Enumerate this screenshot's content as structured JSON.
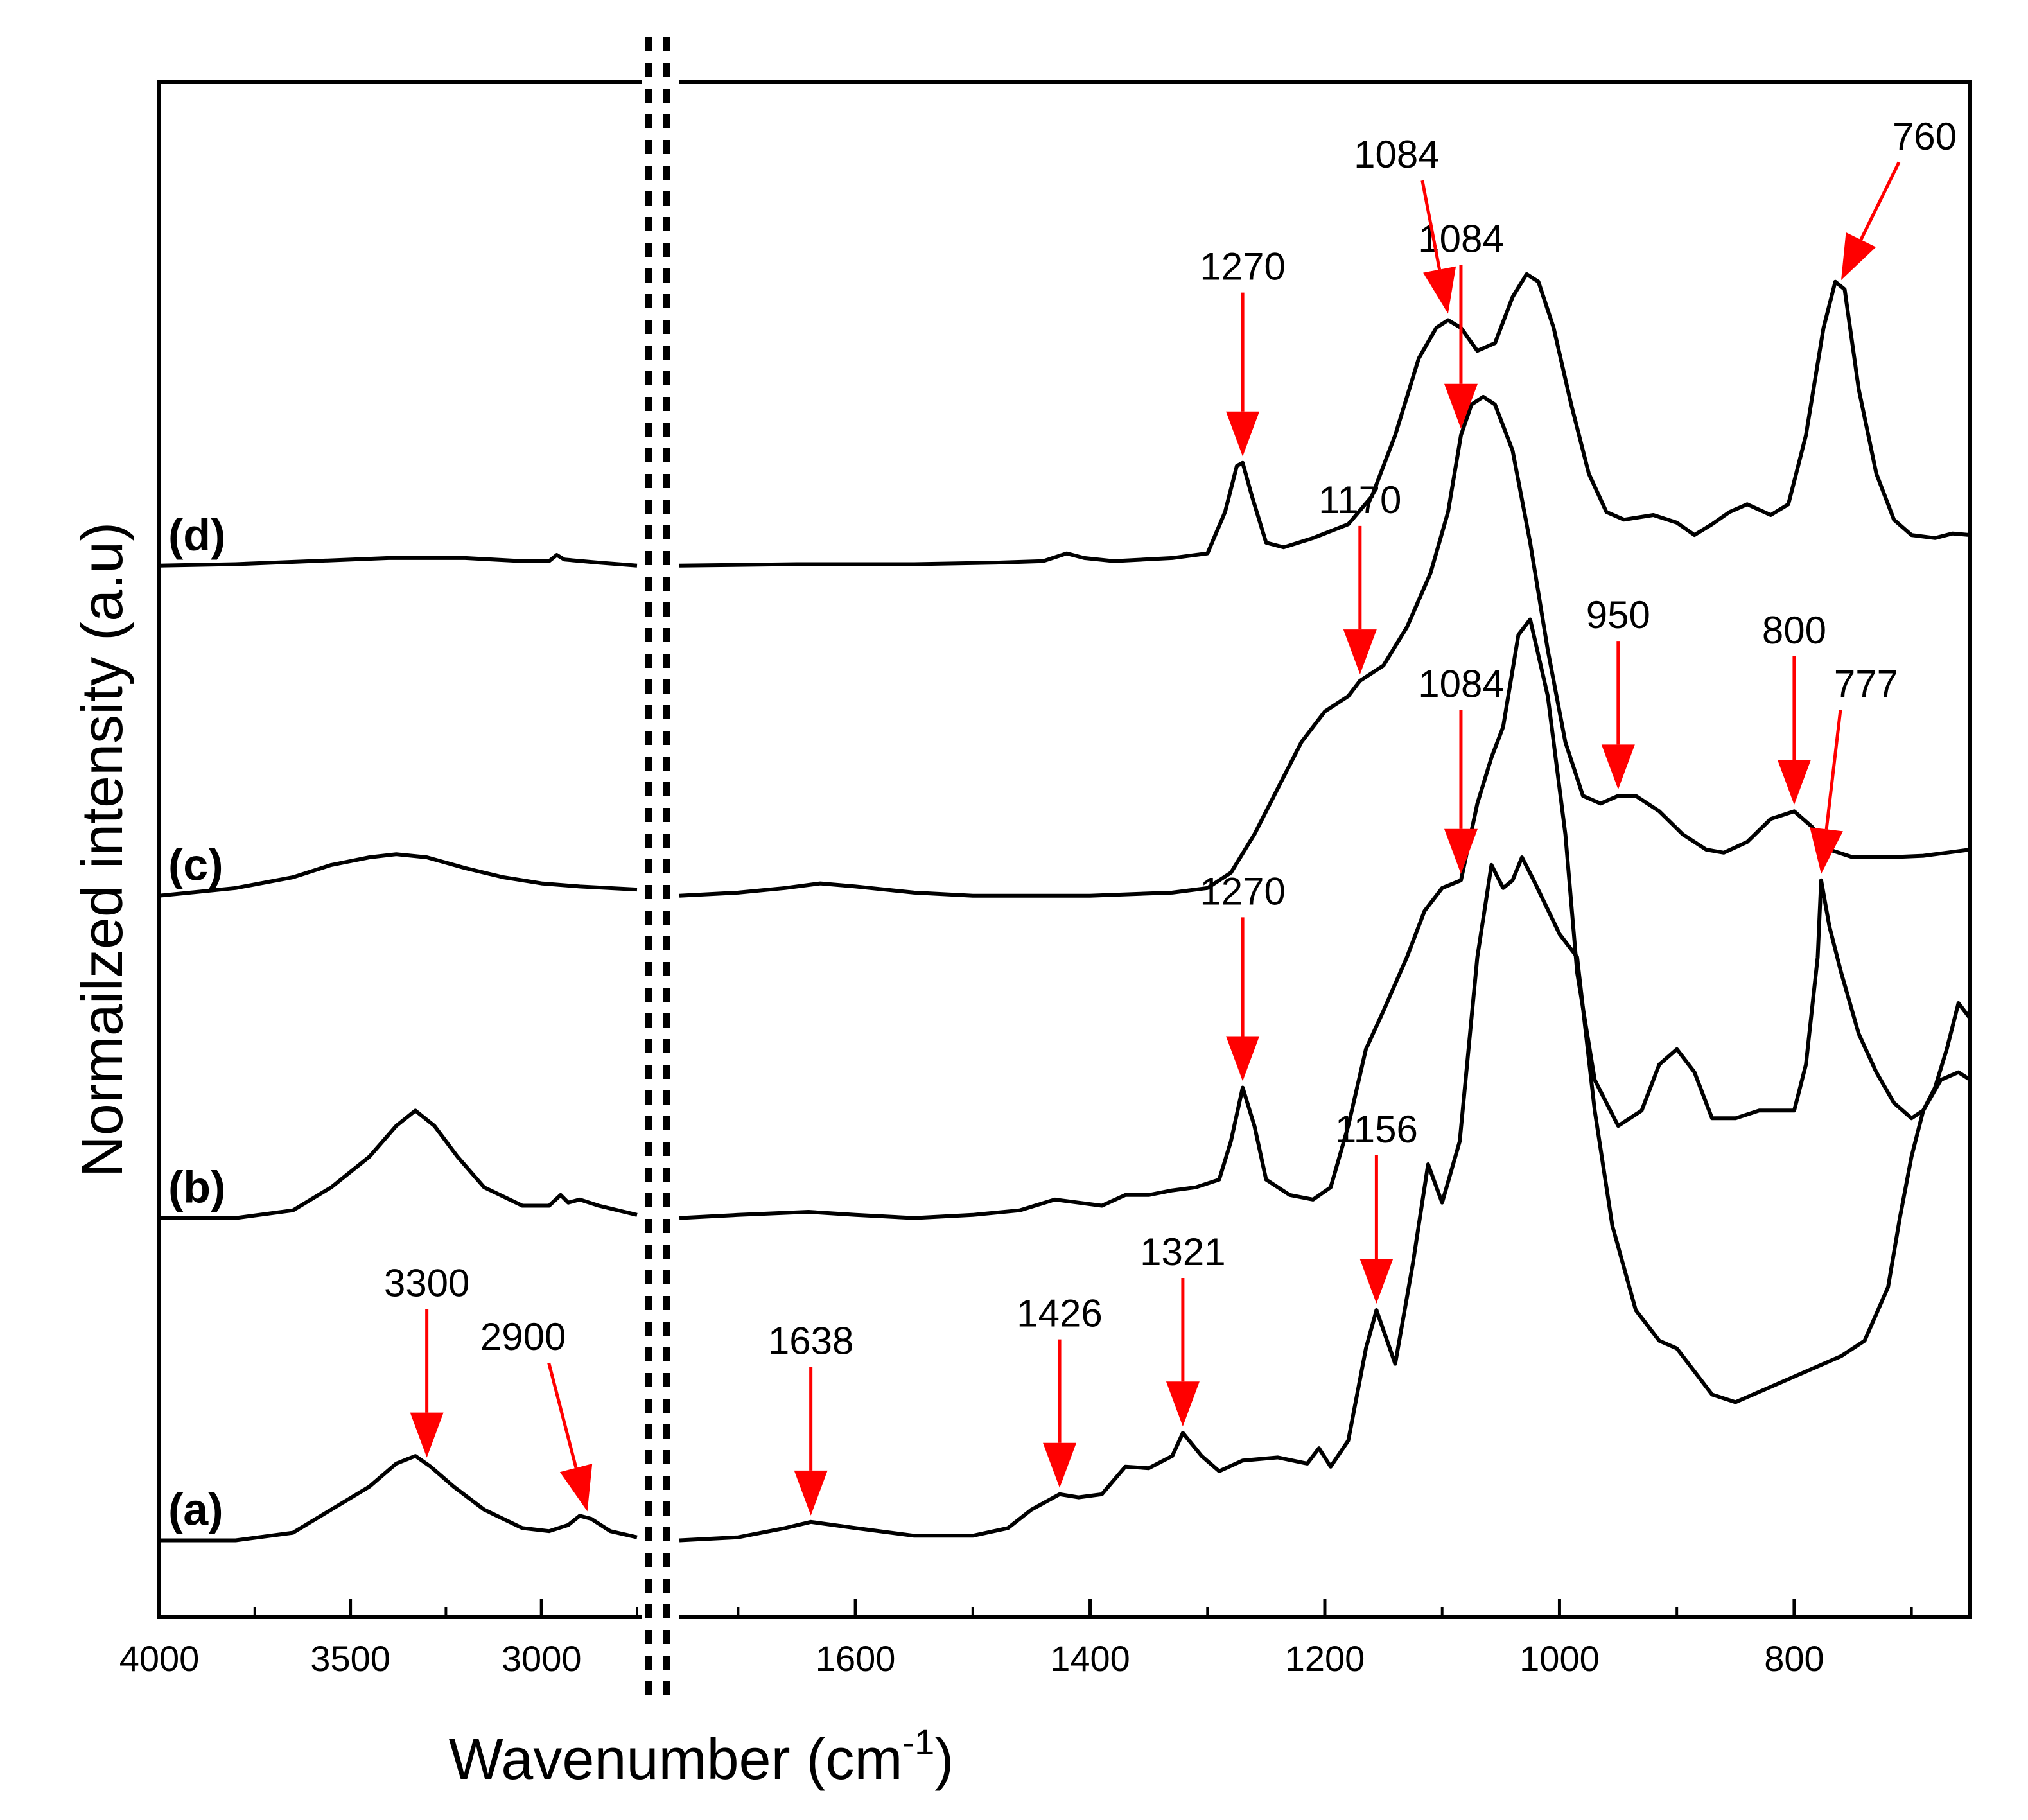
{
  "chart_data": {
    "type": "line",
    "title": "",
    "xlabel": "Wavenumber (cm",
    "xlabel_sup": "-1",
    "xlabel_close": ")",
    "ylabel": "Normailzed intensity (a.u)",
    "grid": false,
    "legend": "none",
    "x_axis_break": true,
    "xlim_left_segment": [
      4000,
      2750
    ],
    "xlim_right_segment": [
      1750,
      650
    ],
    "xticks_left": [
      "4000",
      "3500",
      "3000"
    ],
    "xticks_right": [
      "1600",
      "1400",
      "1200",
      "1000",
      "800"
    ],
    "y_range": [
      0,
      1
    ],
    "colors": {
      "line": "#000000",
      "arrow": "#ff0000"
    },
    "series": [
      {
        "name": "(a)",
        "baseline": 0.05,
        "left": [
          [
            4000,
            0.05
          ],
          [
            3800,
            0.05
          ],
          [
            3650,
            0.055
          ],
          [
            3550,
            0.07
          ],
          [
            3450,
            0.085
          ],
          [
            3380,
            0.1
          ],
          [
            3330,
            0.105
          ],
          [
            3290,
            0.098
          ],
          [
            3230,
            0.085
          ],
          [
            3150,
            0.07
          ],
          [
            3050,
            0.058
          ],
          [
            2980,
            0.056
          ],
          [
            2930,
            0.06
          ],
          [
            2900,
            0.066
          ],
          [
            2870,
            0.064
          ],
          [
            2820,
            0.056
          ],
          [
            2750,
            0.052
          ]
        ],
        "right": [
          [
            1750,
            0.05
          ],
          [
            1700,
            0.052
          ],
          [
            1660,
            0.058
          ],
          [
            1638,
            0.062
          ],
          [
            1600,
            0.058
          ],
          [
            1550,
            0.053
          ],
          [
            1500,
            0.053
          ],
          [
            1470,
            0.058
          ],
          [
            1450,
            0.07
          ],
          [
            1426,
            0.08
          ],
          [
            1410,
            0.078
          ],
          [
            1390,
            0.08
          ],
          [
            1370,
            0.098
          ],
          [
            1350,
            0.097
          ],
          [
            1330,
            0.105
          ],
          [
            1321,
            0.12
          ],
          [
            1305,
            0.105
          ],
          [
            1290,
            0.095
          ],
          [
            1270,
            0.102
          ],
          [
            1240,
            0.104
          ],
          [
            1215,
            0.1
          ],
          [
            1205,
            0.11
          ],
          [
            1195,
            0.098
          ],
          [
            1180,
            0.115
          ],
          [
            1165,
            0.175
          ],
          [
            1156,
            0.2
          ],
          [
            1140,
            0.165
          ],
          [
            1125,
            0.23
          ],
          [
            1112,
            0.295
          ],
          [
            1100,
            0.27
          ],
          [
            1085,
            0.31
          ],
          [
            1070,
            0.43
          ],
          [
            1058,
            0.49
          ],
          [
            1048,
            0.475
          ],
          [
            1040,
            0.48
          ],
          [
            1032,
            0.495
          ],
          [
            1022,
            0.48
          ],
          [
            1000,
            0.445
          ],
          [
            985,
            0.43
          ],
          [
            970,
            0.33
          ],
          [
            955,
            0.255
          ],
          [
            935,
            0.2
          ],
          [
            915,
            0.18
          ],
          [
            900,
            0.175
          ],
          [
            890,
            0.165
          ],
          [
            870,
            0.145
          ],
          [
            850,
            0.14
          ],
          [
            820,
            0.15
          ],
          [
            790,
            0.16
          ],
          [
            760,
            0.17
          ],
          [
            740,
            0.18
          ],
          [
            720,
            0.215
          ],
          [
            710,
            0.26
          ],
          [
            700,
            0.3
          ],
          [
            690,
            0.33
          ],
          [
            680,
            0.345
          ],
          [
            670,
            0.37
          ],
          [
            660,
            0.4
          ],
          [
            650,
            0.39
          ]
        ]
      },
      {
        "name": "(b)",
        "baseline": 0.26,
        "left": [
          [
            4000,
            0.26
          ],
          [
            3800,
            0.26
          ],
          [
            3650,
            0.265
          ],
          [
            3550,
            0.28
          ],
          [
            3450,
            0.3
          ],
          [
            3380,
            0.32
          ],
          [
            3330,
            0.33
          ],
          [
            3280,
            0.32
          ],
          [
            3220,
            0.3
          ],
          [
            3150,
            0.28
          ],
          [
            3050,
            0.268
          ],
          [
            2980,
            0.268
          ],
          [
            2950,
            0.275
          ],
          [
            2930,
            0.27
          ],
          [
            2900,
            0.272
          ],
          [
            2850,
            0.268
          ],
          [
            2750,
            0.262
          ]
        ],
        "right": [
          [
            1750,
            0.26
          ],
          [
            1700,
            0.262
          ],
          [
            1640,
            0.264
          ],
          [
            1600,
            0.262
          ],
          [
            1550,
            0.26
          ],
          [
            1500,
            0.262
          ],
          [
            1460,
            0.265
          ],
          [
            1430,
            0.272
          ],
          [
            1410,
            0.27
          ],
          [
            1390,
            0.268
          ],
          [
            1370,
            0.275
          ],
          [
            1350,
            0.275
          ],
          [
            1330,
            0.278
          ],
          [
            1310,
            0.28
          ],
          [
            1290,
            0.285
          ],
          [
            1280,
            0.31
          ],
          [
            1270,
            0.345
          ],
          [
            1260,
            0.32
          ],
          [
            1250,
            0.285
          ],
          [
            1230,
            0.275
          ],
          [
            1210,
            0.272
          ],
          [
            1195,
            0.28
          ],
          [
            1180,
            0.32
          ],
          [
            1165,
            0.37
          ],
          [
            1150,
            0.395
          ],
          [
            1130,
            0.43
          ],
          [
            1115,
            0.46
          ],
          [
            1100,
            0.475
          ],
          [
            1084,
            0.48
          ],
          [
            1070,
            0.53
          ],
          [
            1058,
            0.56
          ],
          [
            1048,
            0.58
          ],
          [
            1035,
            0.64
          ],
          [
            1025,
            0.65
          ],
          [
            1010,
            0.6
          ],
          [
            995,
            0.51
          ],
          [
            985,
            0.42
          ],
          [
            970,
            0.35
          ],
          [
            950,
            0.32
          ],
          [
            930,
            0.33
          ],
          [
            915,
            0.36
          ],
          [
            900,
            0.37
          ],
          [
            885,
            0.355
          ],
          [
            870,
            0.325
          ],
          [
            850,
            0.325
          ],
          [
            830,
            0.33
          ],
          [
            810,
            0.33
          ],
          [
            800,
            0.33
          ],
          [
            790,
            0.36
          ],
          [
            780,
            0.43
          ],
          [
            777,
            0.48
          ],
          [
            770,
            0.45
          ],
          [
            760,
            0.42
          ],
          [
            745,
            0.38
          ],
          [
            730,
            0.355
          ],
          [
            715,
            0.335
          ],
          [
            700,
            0.325
          ],
          [
            690,
            0.33
          ],
          [
            675,
            0.35
          ],
          [
            660,
            0.355
          ],
          [
            650,
            0.35
          ]
        ]
      },
      {
        "name": "(c)",
        "baseline": 0.47,
        "left": [
          [
            4000,
            0.47
          ],
          [
            3800,
            0.475
          ],
          [
            3650,
            0.482
          ],
          [
            3550,
            0.49
          ],
          [
            3450,
            0.495
          ],
          [
            3380,
            0.497
          ],
          [
            3300,
            0.495
          ],
          [
            3200,
            0.488
          ],
          [
            3100,
            0.482
          ],
          [
            3000,
            0.478
          ],
          [
            2900,
            0.476
          ],
          [
            2750,
            0.474
          ]
        ],
        "right": [
          [
            1750,
            0.47
          ],
          [
            1700,
            0.472
          ],
          [
            1660,
            0.475
          ],
          [
            1630,
            0.478
          ],
          [
            1600,
            0.476
          ],
          [
            1550,
            0.472
          ],
          [
            1500,
            0.47
          ],
          [
            1400,
            0.47
          ],
          [
            1330,
            0.472
          ],
          [
            1300,
            0.475
          ],
          [
            1280,
            0.485
          ],
          [
            1260,
            0.51
          ],
          [
            1240,
            0.54
          ],
          [
            1220,
            0.57
          ],
          [
            1200,
            0.59
          ],
          [
            1180,
            0.6
          ],
          [
            1170,
            0.61
          ],
          [
            1150,
            0.62
          ],
          [
            1130,
            0.645
          ],
          [
            1110,
            0.68
          ],
          [
            1095,
            0.72
          ],
          [
            1084,
            0.77
          ],
          [
            1075,
            0.79
          ],
          [
            1065,
            0.795
          ],
          [
            1055,
            0.79
          ],
          [
            1040,
            0.76
          ],
          [
            1025,
            0.7
          ],
          [
            1010,
            0.63
          ],
          [
            995,
            0.57
          ],
          [
            980,
            0.535
          ],
          [
            965,
            0.53
          ],
          [
            950,
            0.535
          ],
          [
            935,
            0.535
          ],
          [
            915,
            0.525
          ],
          [
            895,
            0.51
          ],
          [
            875,
            0.5
          ],
          [
            860,
            0.498
          ],
          [
            840,
            0.505
          ],
          [
            820,
            0.52
          ],
          [
            800,
            0.525
          ],
          [
            785,
            0.515
          ],
          [
            770,
            0.5
          ],
          [
            750,
            0.495
          ],
          [
            720,
            0.495
          ],
          [
            690,
            0.496
          ],
          [
            670,
            0.498
          ],
          [
            650,
            0.5
          ]
        ]
      },
      {
        "name": "(d)",
        "baseline": 0.685,
        "left": [
          [
            4000,
            0.685
          ],
          [
            3800,
            0.686
          ],
          [
            3600,
            0.688
          ],
          [
            3400,
            0.69
          ],
          [
            3200,
            0.69
          ],
          [
            3050,
            0.688
          ],
          [
            2980,
            0.688
          ],
          [
            2960,
            0.692
          ],
          [
            2940,
            0.689
          ],
          [
            2850,
            0.687
          ],
          [
            2750,
            0.685
          ]
        ],
        "right": [
          [
            1750,
            0.685
          ],
          [
            1650,
            0.686
          ],
          [
            1550,
            0.686
          ],
          [
            1480,
            0.687
          ],
          [
            1440,
            0.688
          ],
          [
            1420,
            0.693
          ],
          [
            1405,
            0.69
          ],
          [
            1380,
            0.688
          ],
          [
            1330,
            0.69
          ],
          [
            1300,
            0.693
          ],
          [
            1285,
            0.72
          ],
          [
            1275,
            0.75
          ],
          [
            1270,
            0.752
          ],
          [
            1262,
            0.73
          ],
          [
            1250,
            0.7
          ],
          [
            1235,
            0.697
          ],
          [
            1210,
            0.703
          ],
          [
            1180,
            0.712
          ],
          [
            1160,
            0.73
          ],
          [
            1140,
            0.77
          ],
          [
            1120,
            0.82
          ],
          [
            1105,
            0.84
          ],
          [
            1095,
            0.845
          ],
          [
            1084,
            0.84
          ],
          [
            1070,
            0.825
          ],
          [
            1055,
            0.83
          ],
          [
            1040,
            0.86
          ],
          [
            1028,
            0.875
          ],
          [
            1018,
            0.87
          ],
          [
            1005,
            0.84
          ],
          [
            990,
            0.79
          ],
          [
            975,
            0.745
          ],
          [
            960,
            0.72
          ],
          [
            945,
            0.715
          ],
          [
            920,
            0.718
          ],
          [
            900,
            0.713
          ],
          [
            885,
            0.705
          ],
          [
            870,
            0.712
          ],
          [
            855,
            0.72
          ],
          [
            840,
            0.725
          ],
          [
            820,
            0.718
          ],
          [
            805,
            0.725
          ],
          [
            790,
            0.77
          ],
          [
            775,
            0.84
          ],
          [
            765,
            0.87
          ],
          [
            757,
            0.865
          ],
          [
            745,
            0.8
          ],
          [
            730,
            0.745
          ],
          [
            715,
            0.715
          ],
          [
            700,
            0.705
          ],
          [
            680,
            0.703
          ],
          [
            665,
            0.706
          ],
          [
            650,
            0.705
          ]
        ]
      }
    ],
    "annotations": [
      {
        "trace": "(a)",
        "text": "3300",
        "peak": 3300,
        "dx": 0,
        "dy": 0.08
      },
      {
        "trace": "(a)",
        "text": "2900",
        "peak": 2880,
        "dx": -60,
        "dy": 0.08
      },
      {
        "trace": "(a)",
        "text": "1638",
        "peak": 1638,
        "dx": 0,
        "dy": 0.08
      },
      {
        "trace": "(a)",
        "text": "1426",
        "peak": 1426,
        "dx": 0,
        "dy": 0.08
      },
      {
        "trace": "(a)",
        "text": "1321",
        "peak": 1321,
        "dx": 0,
        "dy": 0.08
      },
      {
        "trace": "(a)",
        "text": "1156",
        "peak": 1156,
        "dx": 0,
        "dy": 0.08
      },
      {
        "trace": "(b)",
        "text": "1270",
        "peak": 1270,
        "dx": 0,
        "dy": 0.09
      },
      {
        "trace": "(b)",
        "text": "1084",
        "peak": 1084,
        "dx": 0,
        "dy": 0.09
      },
      {
        "trace": "(b)",
        "text": "777",
        "peak": 777,
        "dx": 30,
        "dy": 0.09
      },
      {
        "trace": "(c)",
        "text": "1170",
        "peak": 1170,
        "dx": 0,
        "dy": 0.08
      },
      {
        "trace": "(c)",
        "text": "1084",
        "peak": 1084,
        "dx": 0,
        "dy": 0.09
      },
      {
        "trace": "(c)",
        "text": "950",
        "peak": 950,
        "dx": 0,
        "dy": 0.08
      },
      {
        "trace": "(c)",
        "text": "800",
        "peak": 800,
        "dx": 0,
        "dy": 0.08
      },
      {
        "trace": "(d)",
        "text": "1270",
        "peak": 1270,
        "dx": 0,
        "dy": 0.09
      },
      {
        "trace": "(d)",
        "text": "1084",
        "peak": 1095,
        "dx": -40,
        "dy": 0.07
      },
      {
        "trace": "(d)",
        "text": "760",
        "peak": 760,
        "dx": 90,
        "dy": 0.06
      }
    ]
  }
}
